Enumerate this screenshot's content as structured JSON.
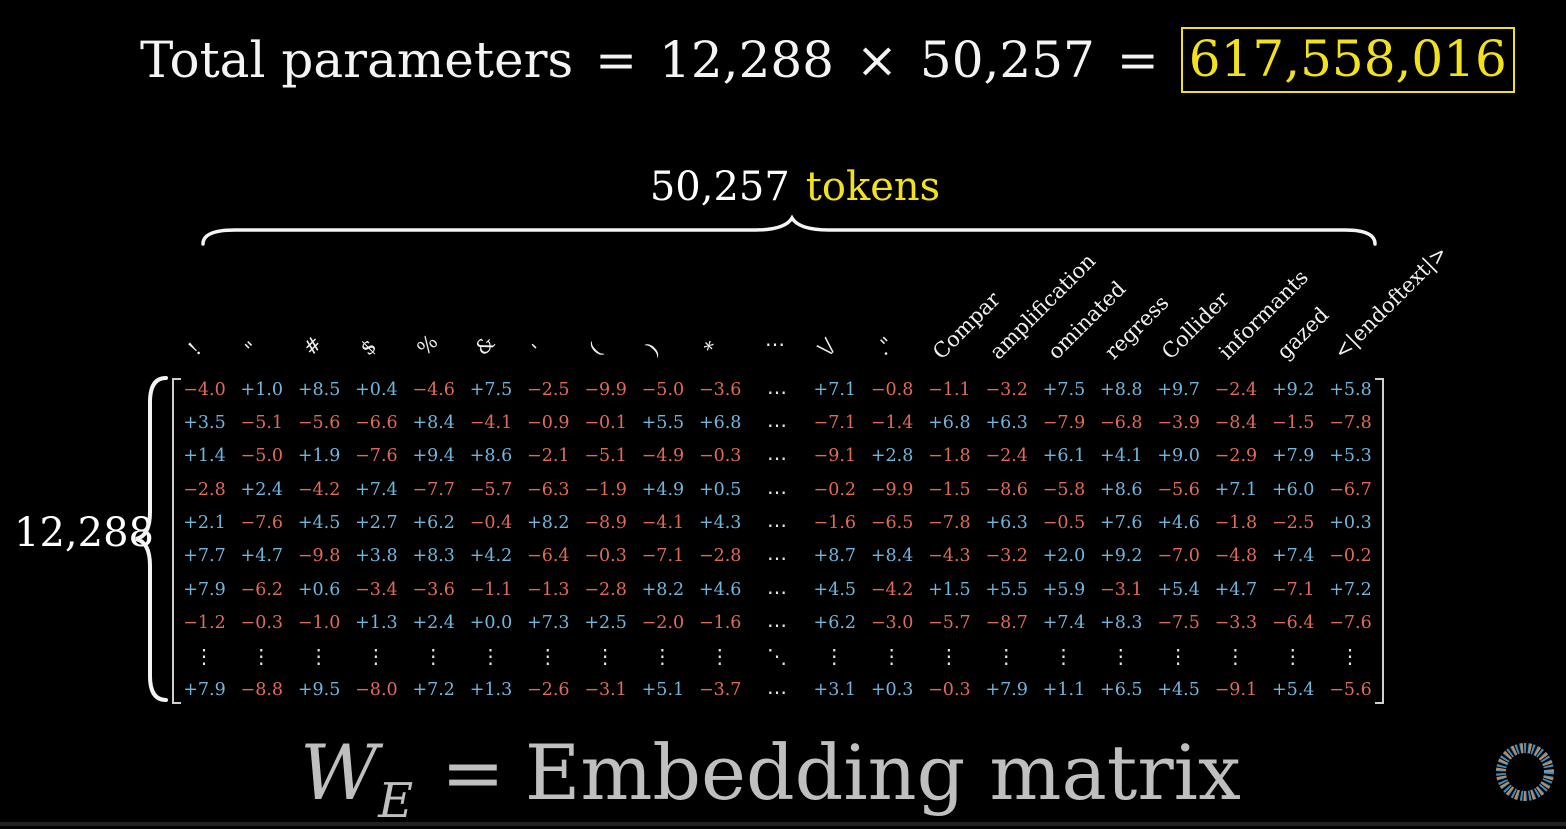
{
  "total": {
    "label": "Total parameters",
    "eq1": "=",
    "a": "12,288",
    "times": "×",
    "b": "50,257",
    "eq2": "=",
    "result": "617,558,016"
  },
  "tokens_label": {
    "count": "50,257",
    "word": "tokens"
  },
  "rows_label": "12,288",
  "colors": {
    "positive": "#6fb6dd",
    "negative": "#e06a58",
    "highlight": "#f2e21c",
    "formula": "#bfbfbf"
  },
  "headers": [
    "!",
    "\"",
    "#",
    "$",
    "%",
    "&",
    "'",
    "(",
    ")",
    "*",
    "⋯",
    "\\/",
    ".\"",
    "Compar",
    "amplification",
    "ominated",
    "regress",
    "Collider",
    "informants",
    "gazed",
    "<|endoftext|>"
  ],
  "matrix_rows": [
    [
      "-4.0",
      "+1.0",
      "+8.5",
      "+0.4",
      "-4.6",
      "+7.5",
      "-2.5",
      "-9.9",
      "-5.0",
      "-3.6",
      "⋯",
      "+7.1",
      "-0.8",
      "-1.1",
      "-3.2",
      "+7.5",
      "+8.8",
      "+9.7",
      "-2.4",
      "+9.2",
      "+5.8"
    ],
    [
      "+3.5",
      "-5.1",
      "-5.6",
      "-6.6",
      "+8.4",
      "-4.1",
      "-0.9",
      "-0.1",
      "+5.5",
      "+6.8",
      "⋯",
      "-7.1",
      "-1.4",
      "+6.8",
      "+6.3",
      "-7.9",
      "-6.8",
      "-3.9",
      "-8.4",
      "-1.5",
      "-7.8"
    ],
    [
      "+1.4",
      "-5.0",
      "+1.9",
      "-7.6",
      "+9.4",
      "+8.6",
      "-2.1",
      "-5.1",
      "-4.9",
      "-0.3",
      "⋯",
      "-9.1",
      "+2.8",
      "-1.8",
      "-2.4",
      "+6.1",
      "+4.1",
      "+9.0",
      "-2.9",
      "+7.9",
      "+5.3"
    ],
    [
      "-2.8",
      "+2.4",
      "-4.2",
      "+7.4",
      "-7.7",
      "-5.7",
      "-6.3",
      "-1.9",
      "+4.9",
      "+0.5",
      "⋯",
      "-0.2",
      "-9.9",
      "-1.5",
      "-8.6",
      "-5.8",
      "+8.6",
      "-5.6",
      "+7.1",
      "+6.0",
      "-6.7"
    ],
    [
      "+2.1",
      "-7.6",
      "+4.5",
      "+2.7",
      "+6.2",
      "-0.4",
      "+8.2",
      "-8.9",
      "-4.1",
      "+4.3",
      "⋯",
      "-1.6",
      "-6.5",
      "-7.8",
      "+6.3",
      "-0.5",
      "+7.6",
      "+4.6",
      "-1.8",
      "-2.5",
      "+0.3"
    ],
    [
      "+7.7",
      "+4.7",
      "-9.8",
      "+3.8",
      "+8.3",
      "+4.2",
      "-6.4",
      "-0.3",
      "-7.1",
      "-2.8",
      "⋯",
      "+8.7",
      "+8.4",
      "-4.3",
      "-3.2",
      "+2.0",
      "+9.2",
      "-7.0",
      "-4.8",
      "+7.4",
      "-0.2"
    ],
    [
      "+7.9",
      "-6.2",
      "+0.6",
      "-3.4",
      "-3.6",
      "-1.1",
      "-1.3",
      "-2.8",
      "+8.2",
      "+4.6",
      "⋯",
      "+4.5",
      "-4.2",
      "+1.5",
      "+5.5",
      "+5.9",
      "-3.1",
      "+5.4",
      "+4.7",
      "-7.1",
      "+7.2"
    ],
    [
      "-1.2",
      "-0.3",
      "-1.0",
      "+1.3",
      "+2.4",
      "+0.0",
      "+7.3",
      "+2.5",
      "-2.0",
      "-1.6",
      "⋯",
      "+6.2",
      "-3.0",
      "-5.7",
      "-8.7",
      "+7.4",
      "+8.3",
      "-7.5",
      "-3.3",
      "-6.4",
      "-7.6"
    ],
    [
      "⋮",
      "⋮",
      "⋮",
      "⋮",
      "⋮",
      "⋮",
      "⋮",
      "⋮",
      "⋮",
      "⋮",
      "⋱",
      "⋮",
      "⋮",
      "⋮",
      "⋮",
      "⋮",
      "⋮",
      "⋮",
      "⋮",
      "⋮",
      "⋮"
    ],
    [
      "+7.9",
      "-8.8",
      "+9.5",
      "-8.0",
      "+7.2",
      "+1.3",
      "-2.6",
      "-3.1",
      "+5.1",
      "-3.7",
      "⋯",
      "+3.1",
      "+0.3",
      "-0.3",
      "+7.9",
      "+1.1",
      "+6.5",
      "+4.5",
      "-9.1",
      "+5.4",
      "-5.6"
    ]
  ],
  "formula": {
    "w": "W",
    "sub": "E",
    "eq": "=",
    "text": "Embedding matrix"
  }
}
